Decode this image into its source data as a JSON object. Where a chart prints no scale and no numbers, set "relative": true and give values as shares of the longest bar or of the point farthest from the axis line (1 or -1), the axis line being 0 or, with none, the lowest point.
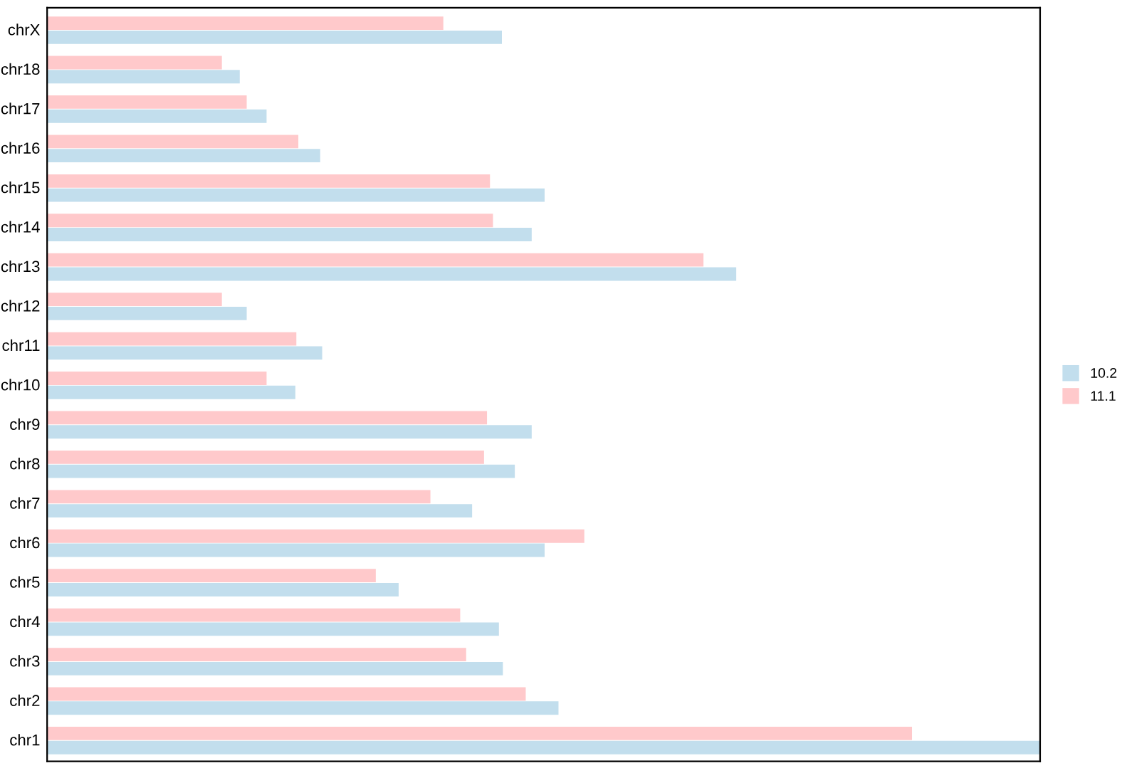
{
  "chart_data": {
    "type": "bar",
    "orientation": "horizontal",
    "relative": true,
    "tick_labels": "y",
    "grid": false,
    "legend": "right",
    "categories": [
      "chrX",
      "chr18",
      "chr17",
      "chr16",
      "chr15",
      "chr14",
      "chr13",
      "chr12",
      "chr11",
      "chr10",
      "chr9",
      "chr8",
      "chr7",
      "chr6",
      "chr5",
      "chr4",
      "chr3",
      "chr2",
      "chr1"
    ],
    "series": [
      {
        "name": "10.2",
        "color": "#c2deed",
        "values": [
          0.458,
          0.194,
          0.221,
          0.275,
          0.501,
          0.488,
          0.694,
          0.201,
          0.277,
          0.25,
          0.488,
          0.471,
          0.428,
          0.501,
          0.354,
          0.455,
          0.459,
          0.515,
          1
        ]
      },
      {
        "name": "11.1",
        "color": "#ffc9cb",
        "values": [
          0.399,
          0.176,
          0.201,
          0.253,
          0.446,
          0.449,
          0.661,
          0.176,
          0.251,
          0.221,
          0.443,
          0.44,
          0.386,
          0.541,
          0.331,
          0.416,
          0.422,
          0.482,
          0.871
        ]
      }
    ]
  }
}
